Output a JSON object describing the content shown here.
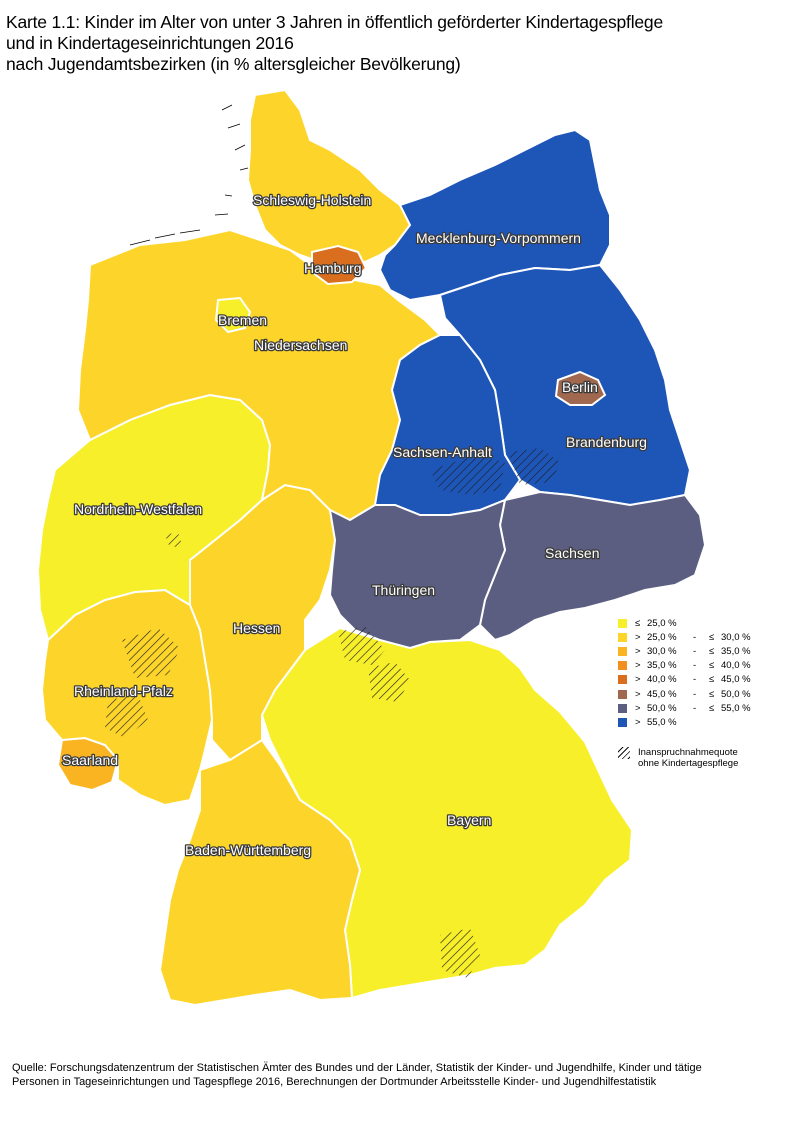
{
  "title": {
    "line1": "Karte 1.1: Kinder im Alter von unter 3 Jahren in öffentlich geförderter Kindertagespflege",
    "line2": "und in Kindertageseinrichtungen 2016",
    "line3": "nach Jugendamtsbezirken (in % altersgleicher Bevölkerung)"
  },
  "colors": {
    "c1": "#f7ef2a",
    "c2": "#fdd52a",
    "c3": "#fbb421",
    "c4": "#f28f1e",
    "c5": "#d86e1e",
    "c6": "#a0684e",
    "c7": "#5b5e80",
    "c8": "#1e56b8"
  },
  "states": [
    {
      "name": "Schleswig-Holstein",
      "cls": "c2"
    },
    {
      "name": "Hamburg",
      "cls": "c5"
    },
    {
      "name": "Mecklenburg-Vorpommern",
      "cls": "c8"
    },
    {
      "name": "Bremen",
      "cls": "c1"
    },
    {
      "name": "Niedersachsen",
      "cls": "c2"
    },
    {
      "name": "Berlin",
      "cls": "c6"
    },
    {
      "name": "Brandenburg",
      "cls": "c8"
    },
    {
      "name": "Sachsen-Anhalt",
      "cls": "c8"
    },
    {
      "name": "Nordrhein-Westfalen",
      "cls": "c1"
    },
    {
      "name": "Sachsen",
      "cls": "c7"
    },
    {
      "name": "Thüringen",
      "cls": "c7"
    },
    {
      "name": "Hessen",
      "cls": "c2"
    },
    {
      "name": "Rheinland-Pfalz",
      "cls": "c2"
    },
    {
      "name": "Saarland",
      "cls": "c3"
    },
    {
      "name": "Bayern",
      "cls": "c1"
    },
    {
      "name": "Baden-Württemberg",
      "cls": "c2"
    }
  ],
  "legend": {
    "items": [
      {
        "op": "≤",
        "lo": "25,0 %",
        "dash": "",
        "op2": "",
        "hi": "",
        "color": "#f7ef2a"
      },
      {
        "op": ">",
        "lo": "25,0 %",
        "dash": "-",
        "op2": "≤",
        "hi": "30,0 %",
        "color": "#fdd52a"
      },
      {
        "op": ">",
        "lo": "30,0 %",
        "dash": "-",
        "op2": "≤",
        "hi": "35,0 %",
        "color": "#fbb421"
      },
      {
        "op": ">",
        "lo": "35,0 %",
        "dash": "-",
        "op2": "≤",
        "hi": "40,0 %",
        "color": "#f28f1e"
      },
      {
        "op": ">",
        "lo": "40,0 %",
        "dash": "-",
        "op2": "≤",
        "hi": "45,0 %",
        "color": "#d86e1e"
      },
      {
        "op": ">",
        "lo": "45,0 %",
        "dash": "-",
        "op2": "≤",
        "hi": "50,0 %",
        "color": "#a0684e"
      },
      {
        "op": ">",
        "lo": "50,0 %",
        "dash": "-",
        "op2": "≤",
        "hi": "55,0 %",
        "color": "#5b5e80"
      },
      {
        "op": ">",
        "lo": "55,0 %",
        "dash": "",
        "op2": "",
        "hi": "",
        "color": "#1e56b8"
      }
    ],
    "hatch_line1": "Inanspruchnahmequote",
    "hatch_line2": "ohne Kindertagespflege"
  },
  "source": {
    "line1": "Quelle: Forschungsdatenzentrum der Statistischen Ämter des Bundes und der Länder, Statistik der Kinder- und Jugendhilfe, Kinder und tätige",
    "line2": "Personen in Tageseinrichtungen und Tagespflege 2016, Berechnungen der Dortmunder Arbeitsstelle Kinder- und Jugendhilfestatistik"
  }
}
